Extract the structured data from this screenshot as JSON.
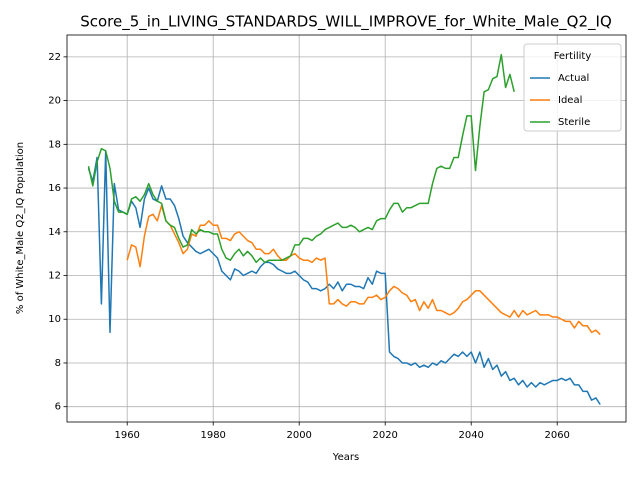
{
  "chart_data": {
    "type": "line",
    "title": "Score_5_in_LIVING_STANDARDS_WILL_IMPROVE_for_White_Male_Q2_IQ",
    "xlabel": "Years",
    "ylabel": "% of White_Male Q2_IQ Population",
    "x": [
      1951,
      1952,
      1953,
      1954,
      1955,
      1956,
      1957,
      1958,
      1959,
      1960,
      1961,
      1962,
      1963,
      1964,
      1965,
      1966,
      1967,
      1968,
      1969,
      1970,
      1971,
      1972,
      1973,
      1974,
      1975,
      1976,
      1977,
      1978,
      1979,
      1980,
      1981,
      1982,
      1983,
      1984,
      1985,
      1986,
      1987,
      1988,
      1989,
      1990,
      1991,
      1992,
      1993,
      1994,
      1995,
      1996,
      1997,
      1998,
      1999,
      2000,
      2001,
      2002,
      2003,
      2004,
      2005,
      2006,
      2007,
      2008,
      2009,
      2010,
      2011,
      2012,
      2013,
      2014,
      2015,
      2016,
      2017,
      2018,
      2019,
      2020,
      2021,
      2022,
      2023,
      2024,
      2025,
      2026,
      2027,
      2028,
      2029,
      2030,
      2031,
      2032,
      2033,
      2034,
      2035,
      2036,
      2037,
      2038,
      2039,
      2040,
      2041,
      2042,
      2043,
      2044,
      2045,
      2046,
      2047,
      2048,
      2049,
      2050,
      2051,
      2052,
      2053,
      2054,
      2055,
      2056,
      2057,
      2058,
      2059,
      2060,
      2061,
      2062,
      2063,
      2064,
      2065,
      2066,
      2067,
      2068,
      2069,
      2070
    ],
    "series": [
      {
        "name": "Actual",
        "color": "#1f77b4",
        "values": [
          16.9,
          16.3,
          17.4,
          10.7,
          17.7,
          9.4,
          16.2,
          15.0,
          14.9,
          14.8,
          15.4,
          15.1,
          14.2,
          15.5,
          16.0,
          15.5,
          15.4,
          16.1,
          15.5,
          15.5,
          15.2,
          14.6,
          13.8,
          13.5,
          13.3,
          13.1,
          13.0,
          13.1,
          13.2,
          13.0,
          12.8,
          12.2,
          12.0,
          11.8,
          12.3,
          12.2,
          12.0,
          12.1,
          12.2,
          12.1,
          12.4,
          12.6,
          12.6,
          12.5,
          12.3,
          12.2,
          12.1,
          12.1,
          12.2,
          12.0,
          11.8,
          11.7,
          11.4,
          11.4,
          11.3,
          11.4,
          11.6,
          11.4,
          11.7,
          11.3,
          11.6,
          11.6,
          11.5,
          11.5,
          11.4,
          11.9,
          11.6,
          12.2,
          12.1,
          12.1,
          8.5,
          8.3,
          8.2,
          8.0,
          8.0,
          7.9,
          8.0,
          7.8,
          7.9,
          7.8,
          8.0,
          7.9,
          8.1,
          8.0,
          8.2,
          8.4,
          8.3,
          8.5,
          8.3,
          8.5,
          8.0,
          8.5,
          7.8,
          8.2,
          7.7,
          7.9,
          7.4,
          7.6,
          7.2,
          7.3,
          7.0,
          7.2,
          6.9,
          7.1,
          6.9,
          7.1,
          7.0,
          7.1,
          7.2,
          7.2,
          7.3,
          7.2,
          7.3,
          7.0,
          7.0,
          6.7,
          6.7,
          6.3,
          6.4,
          6.1
        ]
      },
      {
        "name": "Ideal",
        "color": "#ff7f0e",
        "values": [
          null,
          null,
          null,
          null,
          null,
          null,
          null,
          null,
          null,
          12.7,
          13.4,
          13.3,
          12.4,
          13.8,
          14.7,
          14.8,
          14.5,
          15.2,
          14.5,
          14.3,
          13.9,
          13.5,
          13.0,
          13.2,
          13.9,
          13.8,
          14.3,
          14.3,
          14.5,
          14.3,
          14.3,
          13.7,
          13.7,
          13.6,
          13.9,
          14.0,
          13.8,
          13.6,
          13.5,
          13.2,
          13.2,
          13.0,
          13.0,
          13.2,
          12.9,
          12.7,
          12.7,
          12.9,
          13.0,
          12.8,
          12.7,
          12.7,
          12.6,
          12.8,
          12.7,
          12.8,
          10.7,
          10.7,
          10.9,
          10.7,
          10.6,
          10.8,
          10.8,
          10.7,
          10.7,
          11.0,
          11.0,
          11.1,
          10.9,
          11.0,
          11.3,
          11.5,
          11.4,
          11.2,
          11.1,
          10.8,
          10.9,
          10.4,
          10.8,
          10.5,
          10.9,
          10.4,
          10.4,
          10.3,
          10.2,
          10.3,
          10.5,
          10.8,
          10.9,
          11.1,
          11.3,
          11.3,
          11.1,
          10.9,
          10.7,
          10.5,
          10.3,
          10.2,
          10.1,
          10.4,
          10.1,
          10.4,
          10.2,
          10.3,
          10.4,
          10.2,
          10.2,
          10.2,
          10.1,
          10.1,
          10.0,
          9.9,
          9.9,
          9.6,
          9.9,
          9.7,
          9.7,
          9.4,
          9.5,
          9.3
        ]
      },
      {
        "name": "Sterile",
        "color": "#2ca02c",
        "values": [
          17.0,
          16.1,
          17.2,
          17.8,
          17.7,
          16.9,
          15.4,
          14.9,
          14.9,
          14.8,
          15.5,
          15.6,
          15.4,
          15.7,
          16.2,
          15.7,
          15.4,
          15.3,
          14.5,
          14.3,
          14.2,
          13.7,
          13.3,
          13.4,
          14.1,
          13.9,
          14.1,
          14.0,
          14.0,
          13.9,
          13.9,
          13.2,
          12.8,
          12.7,
          13.0,
          13.2,
          12.9,
          13.1,
          12.9,
          12.6,
          12.8,
          12.6,
          12.7,
          12.7,
          12.7,
          12.7,
          12.8,
          12.9,
          13.4,
          13.4,
          13.7,
          13.7,
          13.6,
          13.8,
          13.9,
          14.1,
          14.2,
          14.3,
          14.4,
          14.2,
          14.2,
          14.3,
          14.2,
          14.0,
          14.1,
          14.2,
          14.1,
          14.5,
          14.6,
          14.6,
          15.0,
          15.3,
          15.3,
          14.9,
          15.1,
          15.1,
          15.2,
          15.3,
          15.3,
          15.3,
          16.2,
          16.9,
          17.0,
          16.9,
          16.9,
          17.4,
          17.4,
          18.4,
          19.3,
          19.3,
          16.8,
          18.8,
          20.4,
          20.5,
          21.0,
          21.1,
          22.1,
          20.6,
          21.2,
          20.4,
          null,
          null,
          null,
          null,
          null,
          null,
          null,
          null,
          null,
          null,
          null,
          null,
          null,
          null,
          null,
          null,
          null,
          null,
          null,
          null
        ]
      }
    ],
    "xlim": [
      1946,
      2076
    ],
    "ylim": [
      5.3,
      23.0
    ],
    "xticks": [
      1960,
      1980,
      2000,
      2020,
      2040,
      2060
    ],
    "yticks": [
      6,
      8,
      10,
      12,
      14,
      16,
      18,
      20,
      22
    ],
    "grid": true,
    "legend_title": "Fertility",
    "legend_loc": "upper right"
  }
}
